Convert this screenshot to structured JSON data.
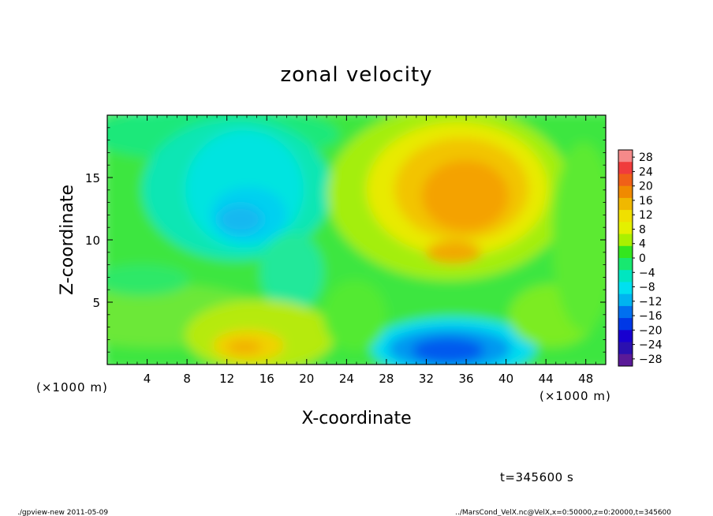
{
  "chart_data": {
    "type": "heatmap",
    "title": "zonal velocity",
    "xlabel": "X-coordinate",
    "ylabel": "Z-coordinate",
    "x_unit_label": "(×1000 m)",
    "x_unit_label_right": "(×1000 m)",
    "xlim": [
      0,
      50
    ],
    "ylim": [
      0,
      20
    ],
    "x_ticks": [
      4,
      8,
      12,
      16,
      20,
      24,
      28,
      32,
      36,
      40,
      44,
      48
    ],
    "x_tick_labels": [
      "4",
      "8",
      "12",
      "16",
      "20",
      "24",
      "28",
      "32",
      "36",
      "40",
      "44",
      "48"
    ],
    "y_ticks": [
      5,
      10,
      15
    ],
    "y_tick_labels": [
      "5",
      "10",
      "15"
    ],
    "colorbar": {
      "min": -30,
      "max": 30,
      "ticks": [
        28,
        24,
        20,
        16,
        12,
        8,
        4,
        0,
        -4,
        -8,
        -12,
        -16,
        -20,
        -24,
        -28
      ],
      "tick_labels": [
        "28",
        "24",
        "20",
        "16",
        "12",
        "8",
        "4",
        "0",
        "−4",
        "−8",
        "−12",
        "−16",
        "−20",
        "−24",
        "−28"
      ],
      "colors": [
        "#f58a8a",
        "#f03c3c",
        "#f06018",
        "#f08a00",
        "#f0b800",
        "#f0e000",
        "#e4f000",
        "#aaf000",
        "#34e61e",
        "#18e870",
        "#00e6c0",
        "#00e0f0",
        "#00b4f0",
        "#0070f0",
        "#0038e6",
        "#1800d0",
        "#2a10b0",
        "#5a1a98"
      ]
    },
    "features": [
      {
        "kind": "positive-max",
        "x": 35,
        "z": 13.5,
        "value": 16
      },
      {
        "kind": "positive-lobe",
        "x": 36,
        "z": 9,
        "value": 14
      },
      {
        "kind": "negative-core",
        "x": 13,
        "z": 11.5,
        "value": -12
      },
      {
        "kind": "negative-min",
        "x": 34.5,
        "z": 1.3,
        "value": -18
      },
      {
        "kind": "positive-low",
        "x": 13.5,
        "z": 1.5,
        "value": 10
      }
    ]
  },
  "annotations": {
    "time": "t=345600 s",
    "footer_left": "./gpview-new   2011-05-09",
    "footer_right": "../MarsCond_VelX.nc@VelX,x=0:50000,z=0:20000,t=345600"
  }
}
